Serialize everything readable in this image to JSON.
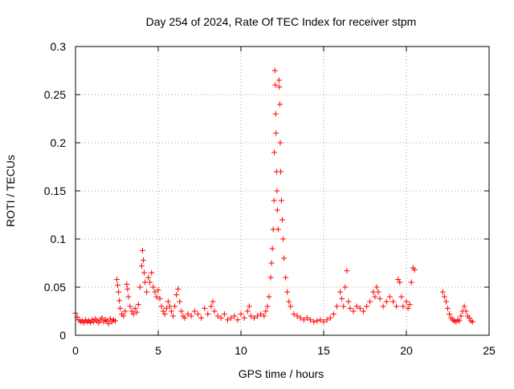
{
  "chart_data": {
    "type": "scatter",
    "title": "Day 254 of 2024, Rate Of TEC Index for receiver stpm",
    "xlabel": "GPS time / hours",
    "ylabel": "ROTI / TECUs",
    "xlim": [
      0,
      25
    ],
    "ylim": [
      0,
      0.3
    ],
    "x_ticks": [
      0,
      5,
      10,
      15,
      20,
      25
    ],
    "x_tick_labels": [
      "0",
      "5",
      "10",
      "15",
      "20",
      "25"
    ],
    "y_ticks": [
      0,
      0.05,
      0.1,
      0.15,
      0.2,
      0.25,
      0.3
    ],
    "y_tick_labels": [
      "0",
      "0.05",
      "0.1",
      "0.15",
      "0.2",
      "0.25",
      "0.3"
    ],
    "grid": true,
    "marker": "+",
    "color": "#ff0000",
    "series": [
      {
        "name": "ROTI",
        "points": [
          [
            0.0,
            0.023
          ],
          [
            0.1,
            0.019
          ],
          [
            0.2,
            0.016
          ],
          [
            0.3,
            0.014
          ],
          [
            0.4,
            0.015
          ],
          [
            0.5,
            0.013
          ],
          [
            0.6,
            0.016
          ],
          [
            0.7,
            0.014
          ],
          [
            0.8,
            0.015
          ],
          [
            0.9,
            0.013
          ],
          [
            1.0,
            0.016
          ],
          [
            1.1,
            0.014
          ],
          [
            1.2,
            0.017
          ],
          [
            1.3,
            0.015
          ],
          [
            1.4,
            0.013
          ],
          [
            1.5,
            0.016
          ],
          [
            1.6,
            0.018
          ],
          [
            1.7,
            0.014
          ],
          [
            1.8,
            0.016
          ],
          [
            1.9,
            0.015
          ],
          [
            2.0,
            0.012
          ],
          [
            2.1,
            0.017
          ],
          [
            2.2,
            0.014
          ],
          [
            2.3,
            0.016
          ],
          [
            2.4,
            0.015
          ],
          [
            2.5,
            0.058
          ],
          [
            2.55,
            0.052
          ],
          [
            2.6,
            0.045
          ],
          [
            2.65,
            0.036
          ],
          [
            2.7,
            0.028
          ],
          [
            2.8,
            0.022
          ],
          [
            2.9,
            0.02
          ],
          [
            3.0,
            0.025
          ],
          [
            3.1,
            0.053
          ],
          [
            3.15,
            0.048
          ],
          [
            3.2,
            0.04
          ],
          [
            3.3,
            0.03
          ],
          [
            3.4,
            0.025
          ],
          [
            3.5,
            0.022
          ],
          [
            3.6,
            0.028
          ],
          [
            3.7,
            0.024
          ],
          [
            3.8,
            0.032
          ],
          [
            3.9,
            0.05
          ],
          [
            4.0,
            0.072
          ],
          [
            4.05,
            0.088
          ],
          [
            4.1,
            0.078
          ],
          [
            4.15,
            0.065
          ],
          [
            4.2,
            0.055
          ],
          [
            4.3,
            0.045
          ],
          [
            4.4,
            0.06
          ],
          [
            4.5,
            0.055
          ],
          [
            4.6,
            0.065
          ],
          [
            4.7,
            0.05
          ],
          [
            4.8,
            0.045
          ],
          [
            4.9,
            0.04
          ],
          [
            5.0,
            0.047
          ],
          [
            5.1,
            0.038
          ],
          [
            5.2,
            0.03
          ],
          [
            5.3,
            0.025
          ],
          [
            5.4,
            0.022
          ],
          [
            5.5,
            0.028
          ],
          [
            5.6,
            0.035
          ],
          [
            5.7,
            0.03
          ],
          [
            5.8,
            0.025
          ],
          [
            5.9,
            0.02
          ],
          [
            6.0,
            0.03
          ],
          [
            6.1,
            0.042
          ],
          [
            6.2,
            0.048
          ],
          [
            6.3,
            0.035
          ],
          [
            6.4,
            0.025
          ],
          [
            6.5,
            0.02
          ],
          [
            6.6,
            0.018
          ],
          [
            6.8,
            0.022
          ],
          [
            7.0,
            0.02
          ],
          [
            7.2,
            0.025
          ],
          [
            7.4,
            0.022
          ],
          [
            7.6,
            0.018
          ],
          [
            7.8,
            0.028
          ],
          [
            8.0,
            0.022
          ],
          [
            8.2,
            0.03
          ],
          [
            8.3,
            0.035
          ],
          [
            8.4,
            0.025
          ],
          [
            8.6,
            0.02
          ],
          [
            8.8,
            0.018
          ],
          [
            9.0,
            0.022
          ],
          [
            9.2,
            0.016
          ],
          [
            9.4,
            0.018
          ],
          [
            9.6,
            0.02
          ],
          [
            9.8,
            0.016
          ],
          [
            10.0,
            0.022
          ],
          [
            10.2,
            0.018
          ],
          [
            10.4,
            0.025
          ],
          [
            10.5,
            0.03
          ],
          [
            10.6,
            0.02
          ],
          [
            10.8,
            0.018
          ],
          [
            11.0,
            0.02
          ],
          [
            11.2,
            0.022
          ],
          [
            11.4,
            0.02
          ],
          [
            11.5,
            0.025
          ],
          [
            11.6,
            0.03
          ],
          [
            11.7,
            0.04
          ],
          [
            11.8,
            0.06
          ],
          [
            11.85,
            0.075
          ],
          [
            11.9,
            0.09
          ],
          [
            11.95,
            0.11
          ],
          [
            12.0,
            0.14
          ],
          [
            12.02,
            0.19
          ],
          [
            12.05,
            0.275
          ],
          [
            12.08,
            0.26
          ],
          [
            12.1,
            0.23
          ],
          [
            12.12,
            0.21
          ],
          [
            12.15,
            0.17
          ],
          [
            12.18,
            0.15
          ],
          [
            12.2,
            0.13
          ],
          [
            12.25,
            0.11
          ],
          [
            12.3,
            0.265
          ],
          [
            12.32,
            0.258
          ],
          [
            12.35,
            0.24
          ],
          [
            12.38,
            0.2
          ],
          [
            12.4,
            0.17
          ],
          [
            12.45,
            0.14
          ],
          [
            12.5,
            0.12
          ],
          [
            12.55,
            0.1
          ],
          [
            12.6,
            0.08
          ],
          [
            12.7,
            0.06
          ],
          [
            12.8,
            0.045
          ],
          [
            12.9,
            0.035
          ],
          [
            13.0,
            0.03
          ],
          [
            13.2,
            0.022
          ],
          [
            13.4,
            0.02
          ],
          [
            13.6,
            0.018
          ],
          [
            13.8,
            0.016
          ],
          [
            14.0,
            0.018
          ],
          [
            14.2,
            0.016
          ],
          [
            14.4,
            0.014
          ],
          [
            14.6,
            0.015
          ],
          [
            14.8,
            0.016
          ],
          [
            15.0,
            0.014
          ],
          [
            15.2,
            0.016
          ],
          [
            15.4,
            0.018
          ],
          [
            15.6,
            0.022
          ],
          [
            15.8,
            0.03
          ],
          [
            16.0,
            0.045
          ],
          [
            16.1,
            0.038
          ],
          [
            16.2,
            0.03
          ],
          [
            16.3,
            0.05
          ],
          [
            16.4,
            0.067
          ],
          [
            16.5,
            0.035
          ],
          [
            16.6,
            0.028
          ],
          [
            16.8,
            0.025
          ],
          [
            17.0,
            0.03
          ],
          [
            17.2,
            0.028
          ],
          [
            17.4,
            0.025
          ],
          [
            17.6,
            0.03
          ],
          [
            17.8,
            0.035
          ],
          [
            18.0,
            0.045
          ],
          [
            18.1,
            0.04
          ],
          [
            18.2,
            0.05
          ],
          [
            18.3,
            0.045
          ],
          [
            18.4,
            0.038
          ],
          [
            18.6,
            0.03
          ],
          [
            18.8,
            0.035
          ],
          [
            19.0,
            0.04
          ],
          [
            19.2,
            0.035
          ],
          [
            19.4,
            0.03
          ],
          [
            19.5,
            0.058
          ],
          [
            19.6,
            0.055
          ],
          [
            19.7,
            0.04
          ],
          [
            19.8,
            0.03
          ],
          [
            20.0,
            0.035
          ],
          [
            20.1,
            0.028
          ],
          [
            20.2,
            0.032
          ],
          [
            20.3,
            0.055
          ],
          [
            20.4,
            0.07
          ],
          [
            20.5,
            0.068
          ],
          [
            22.2,
            0.045
          ],
          [
            22.3,
            0.04
          ],
          [
            22.4,
            0.035
          ],
          [
            22.5,
            0.028
          ],
          [
            22.6,
            0.022
          ],
          [
            22.7,
            0.018
          ],
          [
            22.8,
            0.016
          ],
          [
            22.9,
            0.015
          ],
          [
            23.0,
            0.014
          ],
          [
            23.1,
            0.016
          ],
          [
            23.2,
            0.015
          ],
          [
            23.3,
            0.02
          ],
          [
            23.4,
            0.025
          ],
          [
            23.5,
            0.03
          ],
          [
            23.6,
            0.025
          ],
          [
            23.7,
            0.02
          ],
          [
            23.8,
            0.018
          ],
          [
            23.9,
            0.015
          ],
          [
            24.0,
            0.014
          ]
        ]
      }
    ]
  }
}
